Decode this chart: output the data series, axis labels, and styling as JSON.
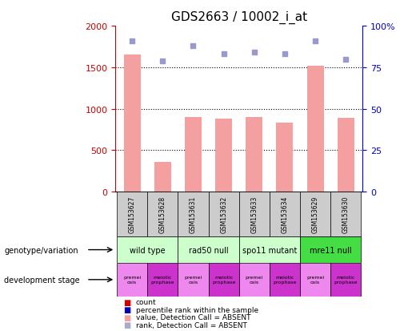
{
  "title": "GDS2663 / 10002_i_at",
  "samples": [
    "GSM153627",
    "GSM153628",
    "GSM153631",
    "GSM153632",
    "GSM153633",
    "GSM153634",
    "GSM153629",
    "GSM153630"
  ],
  "bar_values": [
    1650,
    360,
    900,
    880,
    900,
    830,
    1520,
    890
  ],
  "rank_values": [
    91,
    79,
    88,
    83,
    84,
    83,
    91,
    80
  ],
  "bar_color": "#f4a0a0",
  "rank_color": "#9999cc",
  "left_ylim": [
    0,
    2000
  ],
  "right_ylim": [
    0,
    100
  ],
  "left_yticks": [
    0,
    500,
    1000,
    1500,
    2000
  ],
  "right_yticks": [
    0,
    25,
    50,
    75,
    100
  ],
  "right_yticklabels": [
    "0",
    "25",
    "50",
    "75",
    "100%"
  ],
  "genotype_groups": [
    {
      "label": "wild type",
      "start": 0,
      "end": 2,
      "color": "#ccffcc"
    },
    {
      "label": "rad50 null",
      "start": 2,
      "end": 4,
      "color": "#ccffcc"
    },
    {
      "label": "spo11 mutant",
      "start": 4,
      "end": 6,
      "color": "#ccffcc"
    },
    {
      "label": "mre11 null",
      "start": 6,
      "end": 8,
      "color": "#44dd44"
    }
  ],
  "stage_labels": [
    "premei\nosis",
    "meiotic\nprophase",
    "premei\nosis",
    "meiotic\nprophase",
    "premei\nosis",
    "meiotic\nprophase",
    "premei\nosis",
    "meiotic\nprophase"
  ],
  "stage_colors_alt": [
    "#ee88ee",
    "#cc33cc"
  ],
  "legend_items": [
    {
      "label": "count",
      "color": "#cc0000"
    },
    {
      "label": "percentile rank within the sample",
      "color": "#0000bb"
    },
    {
      "label": "value, Detection Call = ABSENT",
      "color": "#f4a0a0"
    },
    {
      "label": "rank, Detection Call = ABSENT",
      "color": "#aaaacc"
    }
  ],
  "left_label_color": "#cc0000",
  "right_label_color": "#0000cc",
  "sample_box_color": "#cccccc",
  "grid_yticks": [
    500,
    1000,
    1500
  ],
  "title_fontsize": 11,
  "bar_width": 0.55
}
